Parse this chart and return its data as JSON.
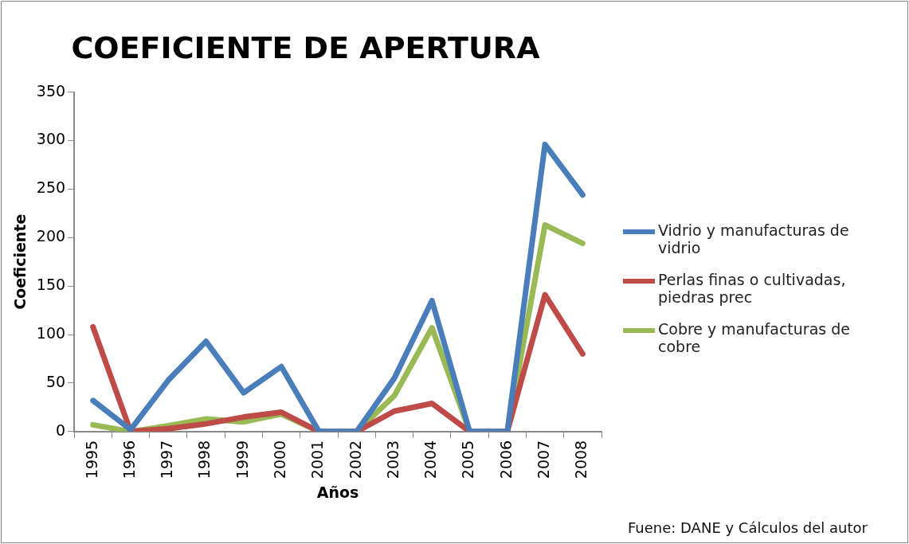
{
  "chart_data": {
    "type": "line",
    "title": "COEFICIENTE DE APERTURA",
    "xlabel": "Años",
    "ylabel": "Coeficiente",
    "categories": [
      "1995",
      "1996",
      "1997",
      "1998",
      "1999",
      "2000",
      "2001",
      "2002",
      "2003",
      "2004",
      "2005",
      "2006",
      "2007",
      "2008"
    ],
    "series": [
      {
        "name": "Vidrio y manufacturas de vidrio",
        "color": "#4a7ebb",
        "values": [
          32,
          2,
          53,
          93,
          40,
          67,
          0,
          0,
          55,
          135,
          0,
          0,
          296,
          244
        ]
      },
      {
        "name": "Perlas finas o cultivadas, piedras prec",
        "color": "#be4b48",
        "values": [
          108,
          0,
          3,
          8,
          15,
          20,
          0,
          0,
          21,
          29,
          0,
          0,
          141,
          80
        ]
      },
      {
        "name": "Cobre y manufacturas de cobre",
        "color": "#98b954",
        "values": [
          7,
          0,
          6,
          13,
          10,
          18,
          0,
          0,
          37,
          107,
          0,
          0,
          213,
          194
        ]
      }
    ],
    "ylim": [
      0,
      350
    ],
    "yticks": [
      0,
      50,
      100,
      150,
      200,
      250,
      300,
      350
    ],
    "grid": false,
    "legend": "right",
    "marker": "none",
    "line_style": "solid",
    "annotations": [
      "Fuene: DANE y Cálculos del autor"
    ]
  }
}
